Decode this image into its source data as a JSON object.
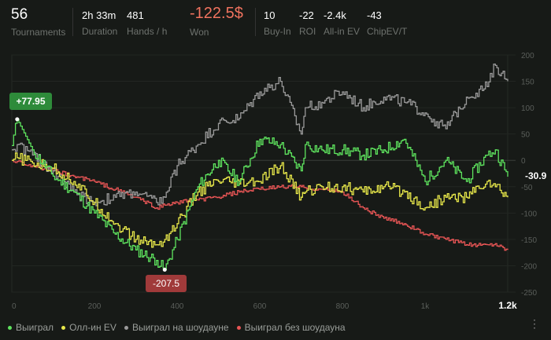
{
  "header": {
    "tournaments": {
      "value": "56",
      "label": "Tournaments"
    },
    "duration": {
      "value": "2h 33m",
      "label": "Duration"
    },
    "hands_per_hour": {
      "value": "481",
      "label": "Hands / h"
    },
    "won": {
      "value": "-122.5$",
      "label": "Won"
    },
    "buyin": {
      "value": "10",
      "label": "Buy-In"
    },
    "roi": {
      "value": "-22",
      "label": "ROI"
    },
    "allin_ev": {
      "value": "-2.4k",
      "label": "All-in EV"
    },
    "chipev": {
      "value": "-43",
      "label": "ChipEV/T"
    }
  },
  "chart_data": {
    "type": "line",
    "xlim": [
      0,
      1200
    ],
    "ylim": [
      -250,
      200
    ],
    "x_ticks": [
      "0",
      "200",
      "400",
      "600",
      "800",
      "1k",
      "1.2k"
    ],
    "y_ticks": [
      200,
      150,
      100,
      50,
      0,
      -50,
      -100,
      -150,
      -200,
      -250
    ],
    "grid": true,
    "legend": "bottom-left",
    "annotations": {
      "max": {
        "x": 13,
        "y": 77.95,
        "label": "+77.95"
      },
      "min": {
        "x": 370,
        "y": -207.5,
        "label": "-207.5"
      },
      "last": "-30.9"
    },
    "x": [
      0,
      13,
      50,
      100,
      150,
      200,
      250,
      300,
      350,
      370,
      400,
      450,
      500,
      550,
      600,
      650,
      700,
      710,
      750,
      800,
      850,
      900,
      950,
      1000,
      1050,
      1100,
      1150,
      1170,
      1200
    ],
    "series": [
      {
        "name": "Выиграл",
        "color": "#5ee35e",
        "values": [
          28,
          77.95,
          20,
          -30,
          -60,
          -100,
          -140,
          -170,
          -190,
          -207.5,
          -150,
          -50,
          0,
          -40,
          40,
          30,
          -20,
          30,
          20,
          20,
          10,
          20,
          40,
          -40,
          0,
          -40,
          10,
          20,
          -30.9
        ]
      },
      {
        "name": "Олл-ин EV",
        "color": "#e8e84a",
        "values": [
          0,
          5,
          -5,
          -15,
          -40,
          -80,
          -120,
          -150,
          -160,
          -150,
          -120,
          -60,
          -40,
          -45,
          -40,
          -10,
          -70,
          -60,
          -50,
          -50,
          -60,
          -50,
          -60,
          -90,
          -70,
          -70,
          -40,
          -50,
          -70
        ]
      },
      {
        "name": "Выиграл на шоудауне",
        "color": "#9a9a9a",
        "values": [
          20,
          30,
          10,
          -20,
          -60,
          -80,
          -70,
          -60,
          -80,
          -70,
          -10,
          30,
          70,
          80,
          130,
          150,
          50,
          100,
          110,
          130,
          100,
          120,
          110,
          90,
          60,
          120,
          140,
          180,
          150
        ]
      },
      {
        "name": "Выиграл без шоудауна",
        "color": "#e85555",
        "values": [
          0,
          -2,
          -10,
          -20,
          -30,
          -40,
          -55,
          -70,
          -90,
          -85,
          -80,
          -75,
          -70,
          -60,
          -55,
          -50,
          -50,
          -52,
          -55,
          -60,
          -90,
          -110,
          -120,
          -140,
          -150,
          -160,
          -160,
          -158,
          -170
        ]
      }
    ]
  },
  "legend_menu": "⋮"
}
